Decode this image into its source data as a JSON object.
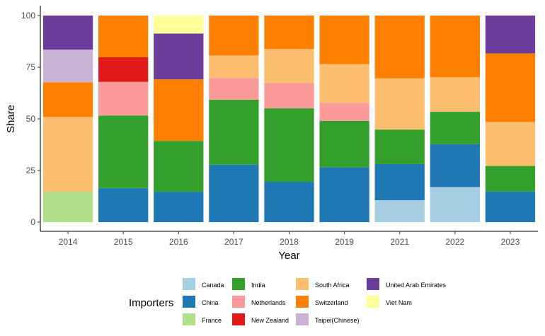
{
  "chart_data": {
    "type": "bar",
    "stacked": true,
    "xlabel": "Year",
    "ylabel": "Share",
    "ylim": [
      0,
      100
    ],
    "yticks": [
      0,
      25,
      50,
      75,
      100
    ],
    "categories": [
      "2014",
      "2015",
      "2016",
      "2017",
      "2018",
      "2019",
      "2021",
      "2022",
      "2023"
    ],
    "legend_title": "Importers",
    "legend_position": "bottom",
    "series": [
      {
        "name": "Canada",
        "color": "#A6CEE3",
        "values": [
          0,
          0,
          0,
          0,
          0,
          0,
          10.6,
          17,
          0
        ]
      },
      {
        "name": "China",
        "color": "#1F78B4",
        "values": [
          0,
          16.5,
          14.7,
          27.8,
          19.5,
          26.5,
          17.5,
          20.7,
          14.8
        ]
      },
      {
        "name": "France",
        "color": "#B2DF8A",
        "values": [
          14.7,
          0,
          0,
          0,
          0,
          0,
          0,
          0,
          0
        ]
      },
      {
        "name": "India",
        "color": "#33A02C",
        "values": [
          0,
          35.1,
          24.6,
          31.5,
          35.6,
          22.5,
          16.7,
          15.7,
          12.4
        ]
      },
      {
        "name": "Netherlands",
        "color": "#FB9A99",
        "values": [
          0,
          16.3,
          0,
          10.5,
          12.2,
          8.8,
          0,
          0,
          0
        ]
      },
      {
        "name": "New Zealand",
        "color": "#E31A1C",
        "values": [
          0,
          11.9,
          0,
          0,
          0,
          0,
          0,
          0,
          0
        ]
      },
      {
        "name": "South Africa",
        "color": "#FDBF6F",
        "values": [
          36.2,
          0,
          0,
          10.9,
          16.5,
          18.7,
          24.8,
          16.8,
          21.3
        ]
      },
      {
        "name": "Switzerland",
        "color": "#FF7F00",
        "values": [
          16.8,
          20.2,
          29.8,
          19.3,
          16.2,
          23.5,
          30.4,
          29.8,
          33.2
        ]
      },
      {
        "name": "Taipei(Chinese)",
        "color": "#CAB2D6",
        "values": [
          15.8,
          0,
          0,
          0,
          0,
          0,
          0,
          0,
          0
        ]
      },
      {
        "name": "United Arab Emirates",
        "color": "#6A3D9A",
        "values": [
          16.5,
          0,
          22.2,
          0,
          0,
          0,
          0,
          0,
          18.3
        ]
      },
      {
        "name": "Viet Nam",
        "color": "#FFFF99",
        "values": [
          0,
          0,
          8.7,
          0,
          0,
          0,
          0,
          0,
          0
        ]
      }
    ]
  }
}
